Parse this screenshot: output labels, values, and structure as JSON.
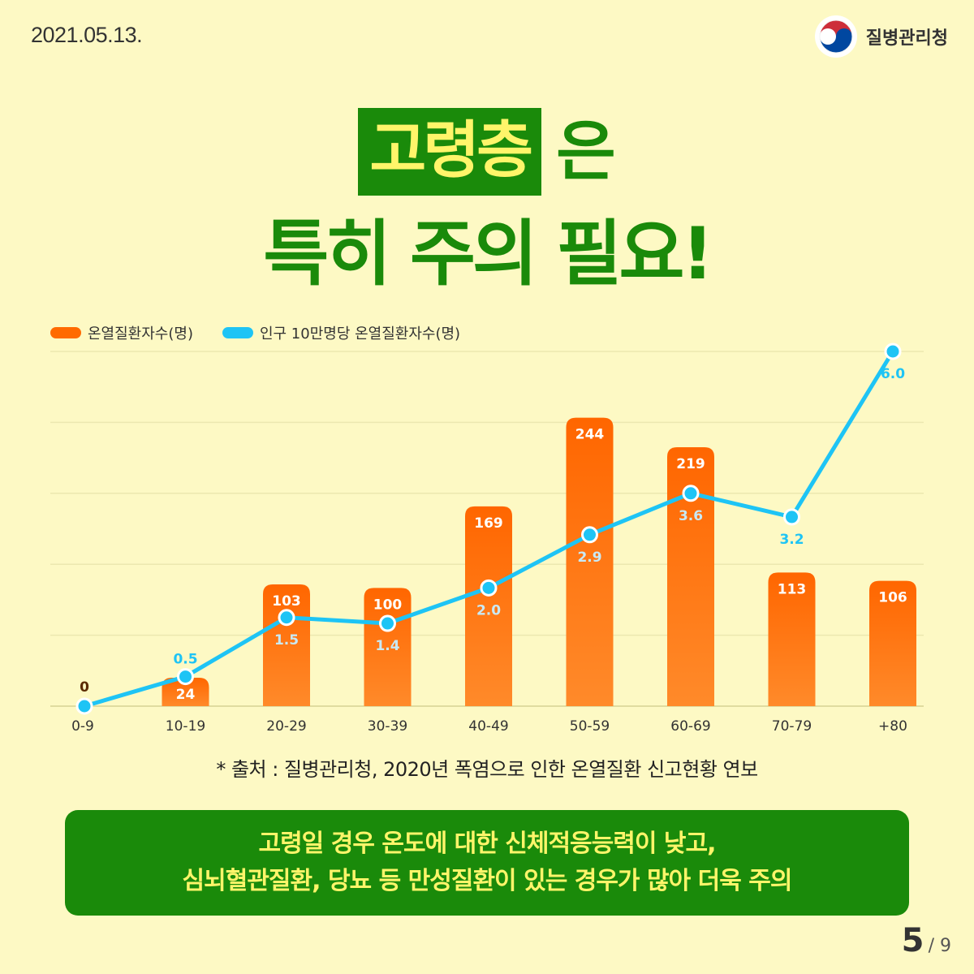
{
  "header": {
    "date": "2021.05.13.",
    "agency": "질병관리청"
  },
  "title": {
    "highlight": "고령층",
    "rest": "은",
    "line2": "특히 주의 필요!"
  },
  "legend": {
    "bars": "온열질환자수(명)",
    "line": "인구 10만명당 온열질환자수(명)"
  },
  "colors": {
    "background": "#fdf9c4",
    "bar": "#ff6a00",
    "line": "#1ec4f5",
    "green": "#1a8a0a",
    "yellow": "#fff56a"
  },
  "chart_data": {
    "type": "bar",
    "categories": [
      "0-9",
      "10-19",
      "20-29",
      "30-39",
      "40-49",
      "50-59",
      "60-69",
      "70-79",
      "+80"
    ],
    "series": [
      {
        "name": "온열질환자수(명)",
        "type": "bar",
        "values": [
          0,
          24,
          103,
          100,
          169,
          244,
          219,
          113,
          106
        ]
      },
      {
        "name": "인구 10만명당 온열질환자수(명)",
        "type": "line",
        "values": [
          0,
          0.5,
          1.5,
          1.4,
          2.0,
          2.9,
          3.6,
          3.2,
          6.0
        ]
      }
    ],
    "value_labels": {
      "bars": [
        "0",
        "24",
        "103",
        "100",
        "169",
        "244",
        "219",
        "113",
        "106"
      ],
      "line": [
        "",
        "0.5",
        "1.5",
        "1.4",
        "2.0",
        "2.9",
        "3.6",
        "3.2",
        "6.0"
      ]
    },
    "ylim_bar": [
      0,
      300
    ],
    "ylim_line": [
      0,
      6
    ],
    "grid": true
  },
  "source": "* 출처 : 질병관리청, 2020년 폭염으로 인한 온열질환 신고현황 연보",
  "banner": {
    "line1": "고령일 경우 온도에 대한 신체적응능력이 낮고,",
    "line2": "심뇌혈관질환, 당뇨 등 만성질환이 있는 경우가 많아 더욱 주의"
  },
  "page": {
    "current": "5",
    "separator": "/ 9"
  }
}
